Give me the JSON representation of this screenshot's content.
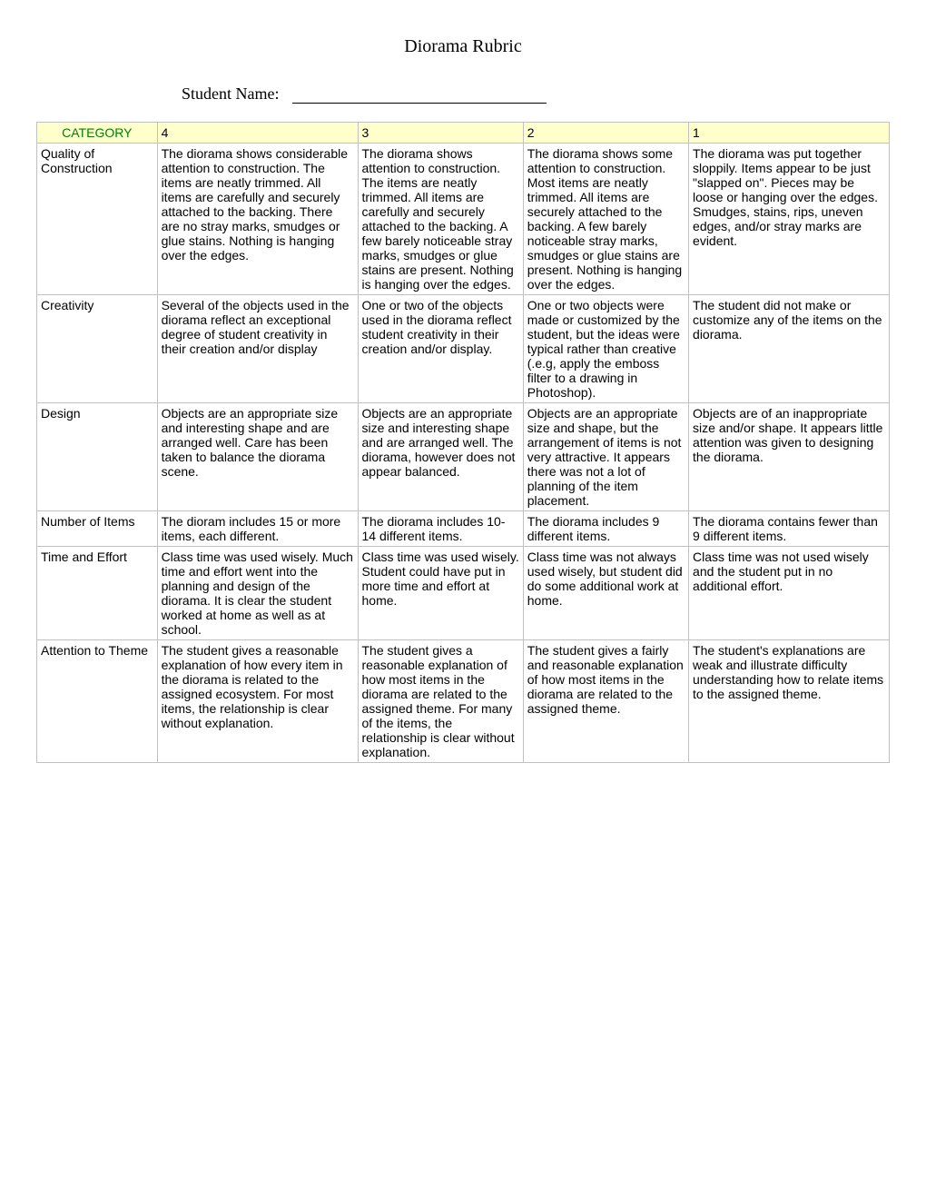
{
  "title": "Diorama Rubric",
  "student_label": "Student Name:",
  "headers": {
    "category": "CATEGORY",
    "col4": "4",
    "col3": "3",
    "col2": "2",
    "col1": "1"
  },
  "rows": [
    {
      "category": "Quality of Construction",
      "c4": "The diorama shows considerable attention to construction. The items are neatly trimmed. All items are carefully and securely attached to the backing. There are no stray marks, smudges or glue stains. Nothing is hanging over the edges.",
      "c3": "The diorama shows attention to construction. The items are neatly trimmed. All items are carefully and securely attached to the backing. A few barely noticeable stray marks, smudges or glue stains are present. Nothing is hanging over the edges.",
      "c2": "The diorama shows some attention to construction. Most items are neatly trimmed. All items are securely attached to the backing. A few barely noticeable stray marks, smudges or glue stains are present. Nothing is hanging over the edges.",
      "c1": "The diorama was put together sloppily. Items appear to be just \"slapped on\". Pieces may be loose or hanging over the edges. Smudges, stains, rips, uneven edges, and/or stray marks are evident."
    },
    {
      "category": "Creativity",
      "c4": "Several of the objects used in the diorama reflect an exceptional degree of student creativity in their creation and/or display",
      "c3": "One or two of the objects used in the diorama reflect student creativity in their creation and/or display.",
      "c2": "One or two objects were made or customized by the student, but the ideas were typical rather than creative (.e.g, apply the emboss filter to a drawing in Photoshop).",
      "c1": "The student did not make or customize any of the items on the diorama."
    },
    {
      "category": "Design",
      "c4": "Objects are an appropriate size and interesting shape and are arranged well. Care has been taken to balance the diorama scene.",
      "c3": "Objects are an appropriate size and interesting shape and are arranged well. The diorama, however does not appear balanced.",
      "c2": "Objects are an appropriate size and shape, but the arrangement of items is not very attractive. It appears there was not a lot of planning of the item placement.",
      "c1": "Objects are of an inappropriate size and/or shape. It appears little attention was given to designing the diorama."
    },
    {
      "category": "Number of Items",
      "c4": "The dioram includes 15 or more items, each different.",
      "c3": "The diorama includes 10-14 different items.",
      "c2": "The diorama includes 9 different items.",
      "c1": "The diorama contains fewer than 9 different items."
    },
    {
      "category": "Time and Effort",
      "c4": "Class time was used wisely. Much time and effort went into the planning and design of the diorama. It is clear the student worked at home as well as at school.",
      "c3": "Class time was used wisely. Student could have put in more time and effort at home.",
      "c2": "Class time was not always used wisely, but student did do some additional work at home.",
      "c1": "Class time was not used wisely and the student put in no additional effort."
    },
    {
      "category": "Attention to Theme",
      "c4": "The student gives a reasonable explanation of how every item in the diorama is related to the assigned ecosystem. For most items, the relationship is clear without explanation.",
      "c3": "The student gives a reasonable explanation of how most items in the diorama are related to the assigned theme. For many of the items, the relationship is clear without explanation.",
      "c2": "The student gives a fairly and reasonable explanation of how most items in the diorama are related to the assigned theme.",
      "c1": "The student's explanations are weak and illustrate difficulty understanding how to relate items to the assigned theme."
    }
  ],
  "colors": {
    "header_bg": "#ffffcc",
    "category_text": "#008000",
    "border": "#c0c0c0",
    "background": "#ffffff"
  }
}
